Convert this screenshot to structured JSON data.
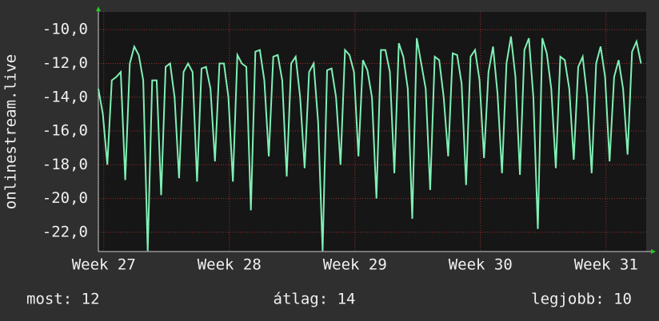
{
  "chart_data": {
    "type": "line",
    "ylabel": "onlinestream.live",
    "color": "#7ff0b4",
    "grid": true,
    "ylim": [
      -23.14,
      -8.95
    ],
    "yticks": [
      {
        "value": -22,
        "label": "-22,0"
      },
      {
        "value": -20,
        "label": "-20,0"
      },
      {
        "value": -18,
        "label": "-18,0"
      },
      {
        "value": -16,
        "label": "-16,0"
      },
      {
        "value": -14,
        "label": "-14,0"
      },
      {
        "value": -12,
        "label": "-12,0"
      },
      {
        "value": -10,
        "label": "-10,0"
      }
    ],
    "xlim": [
      0,
      30.54
    ],
    "xticks": [
      {
        "value": 0.3,
        "label": "Week 27"
      },
      {
        "value": 7.3,
        "label": "Week 28"
      },
      {
        "value": 14.3,
        "label": "Week 29"
      },
      {
        "value": 21.3,
        "label": "Week 30"
      },
      {
        "value": 28.3,
        "label": "Week 31"
      }
    ],
    "x": [
      0,
      0.25,
      0.5,
      0.75,
      1,
      1.25,
      1.5,
      1.75,
      2,
      2.25,
      2.5,
      2.75,
      3,
      3.25,
      3.5,
      3.75,
      4,
      4.25,
      4.5,
      4.75,
      5,
      5.25,
      5.5,
      5.75,
      6,
      6.25,
      6.5,
      6.75,
      7,
      7.25,
      7.5,
      7.75,
      8,
      8.25,
      8.5,
      8.75,
      9,
      9.25,
      9.5,
      9.75,
      10,
      10.25,
      10.5,
      10.75,
      11,
      11.25,
      11.5,
      11.75,
      12,
      12.25,
      12.5,
      12.75,
      13,
      13.25,
      13.5,
      13.75,
      14,
      14.25,
      14.5,
      14.75,
      15,
      15.25,
      15.5,
      15.75,
      16,
      16.25,
      16.5,
      16.75,
      17,
      17.25,
      17.5,
      17.75,
      18,
      18.25,
      18.5,
      18.75,
      19,
      19.25,
      19.5,
      19.75,
      20,
      20.25,
      20.5,
      20.75,
      21,
      21.25,
      21.5,
      21.75,
      22,
      22.25,
      22.5,
      22.75,
      23,
      23.25,
      23.5,
      23.75,
      24,
      24.25,
      24.5,
      24.75,
      25,
      25.25,
      25.5,
      25.75,
      26,
      26.25,
      26.5,
      26.75,
      27,
      27.25,
      27.5,
      27.75,
      28,
      28.25,
      28.5,
      28.75,
      29,
      29.25,
      29.5,
      29.75,
      30,
      30.25
    ],
    "values": [
      -13.5,
      -15,
      -18,
      -13,
      -12.8,
      -12.5,
      -18.9,
      -12,
      -11,
      -11.5,
      -13,
      -23.1,
      -13,
      -13,
      -19.8,
      -12.2,
      -12,
      -14,
      -18.8,
      -12.5,
      -12,
      -12.5,
      -19,
      -12.3,
      -12.2,
      -13.5,
      -17.8,
      -12,
      -12,
      -14,
      -19,
      -11.5,
      -12,
      -12.2,
      -20.7,
      -11.3,
      -11.2,
      -13,
      -17.5,
      -11.6,
      -11.5,
      -13,
      -18.7,
      -12,
      -11.6,
      -14,
      -18.2,
      -12.5,
      -12,
      -15.5,
      -23.1,
      -12.4,
      -12.3,
      -14,
      -18,
      -11.2,
      -11.5,
      -12.5,
      -17.5,
      -11.8,
      -12.4,
      -14,
      -20,
      -11.2,
      -11.2,
      -12.5,
      -18.5,
      -10.8,
      -11.6,
      -13.5,
      -21.2,
      -10.5,
      -12,
      -13.5,
      -19.5,
      -11.6,
      -11.8,
      -14,
      -17.5,
      -11.4,
      -11.5,
      -13.2,
      -19.2,
      -11.6,
      -11.2,
      -13,
      -17.6,
      -12.5,
      -11,
      -13.8,
      -18.5,
      -12,
      -10.4,
      -12.8,
      -18.6,
      -11.2,
      -10.5,
      -14,
      -21.8,
      -10.5,
      -11.4,
      -13.5,
      -18.2,
      -11.6,
      -11.8,
      -13.5,
      -17.7,
      -12.2,
      -11.6,
      -14,
      -18.5,
      -12,
      -11,
      -12.8,
      -17.8,
      -12.8,
      -11.8,
      -13.5,
      -17.4,
      -11.3,
      -10.7,
      -12
    ],
    "legend": [
      "most: 12",
      "átlag: 14",
      "legjobb: 10"
    ]
  }
}
